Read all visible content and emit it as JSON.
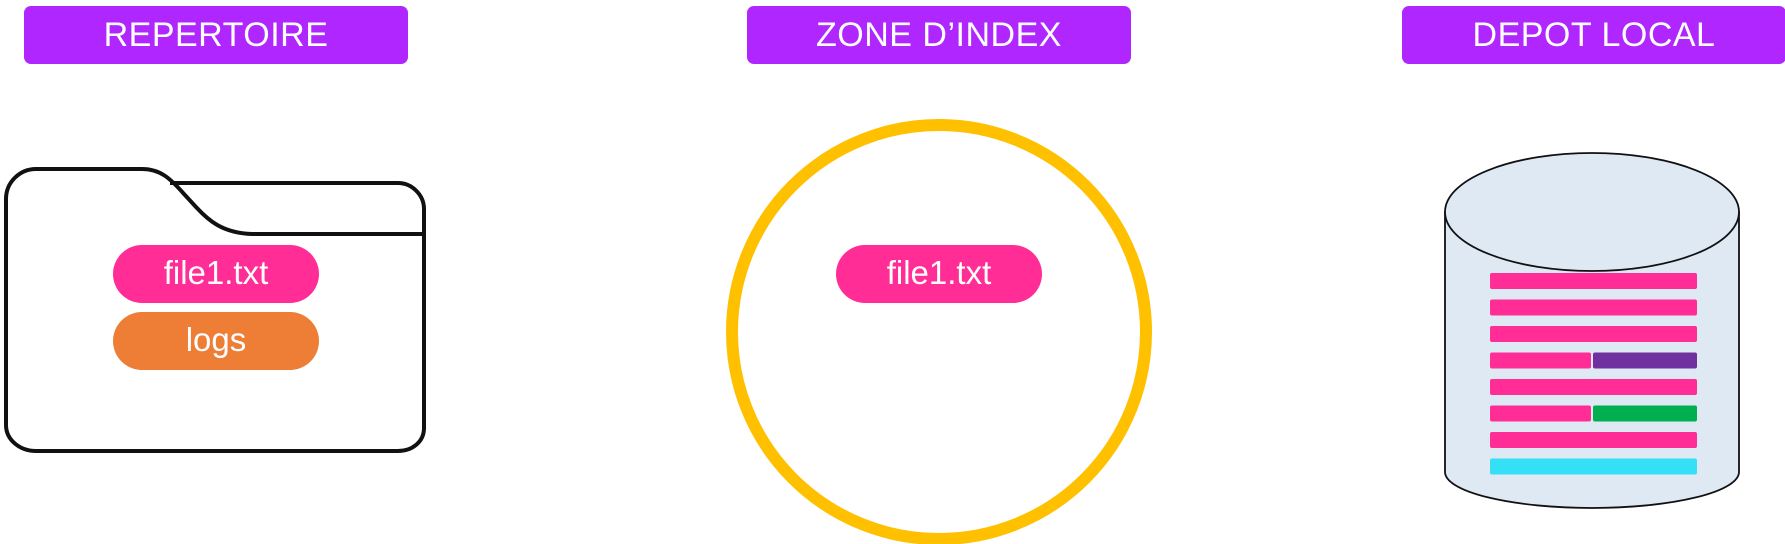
{
  "headers": {
    "working_dir": "REPERTOIRE",
    "index": "ZONE D’INDEX",
    "repo": "DEPOT LOCAL"
  },
  "working_dir": {
    "items": [
      "file1.txt",
      "logs"
    ]
  },
  "index": {
    "items": [
      "file1.txt"
    ]
  },
  "colors": {
    "header_bg": "#b026ff",
    "file_pill": "#ff2d95",
    "logs_pill": "#ee7d35",
    "index_ring": "#ffc000",
    "repo_fill": "#dee9f4",
    "bar_pink": "#ff2d95",
    "bar_purple": "#7030a0",
    "bar_green": "#00b050",
    "bar_cyan": "#33e0f5"
  },
  "repo_bars": [
    {
      "segments": [
        "pink"
      ]
    },
    {
      "segments": [
        "pink"
      ]
    },
    {
      "segments": [
        "pink"
      ]
    },
    {
      "segments": [
        "pink",
        "purple"
      ]
    },
    {
      "segments": [
        "pink"
      ]
    },
    {
      "segments": [
        "pink",
        "green"
      ]
    },
    {
      "segments": [
        "pink"
      ]
    },
    {
      "segments": [
        "cyan"
      ]
    }
  ]
}
